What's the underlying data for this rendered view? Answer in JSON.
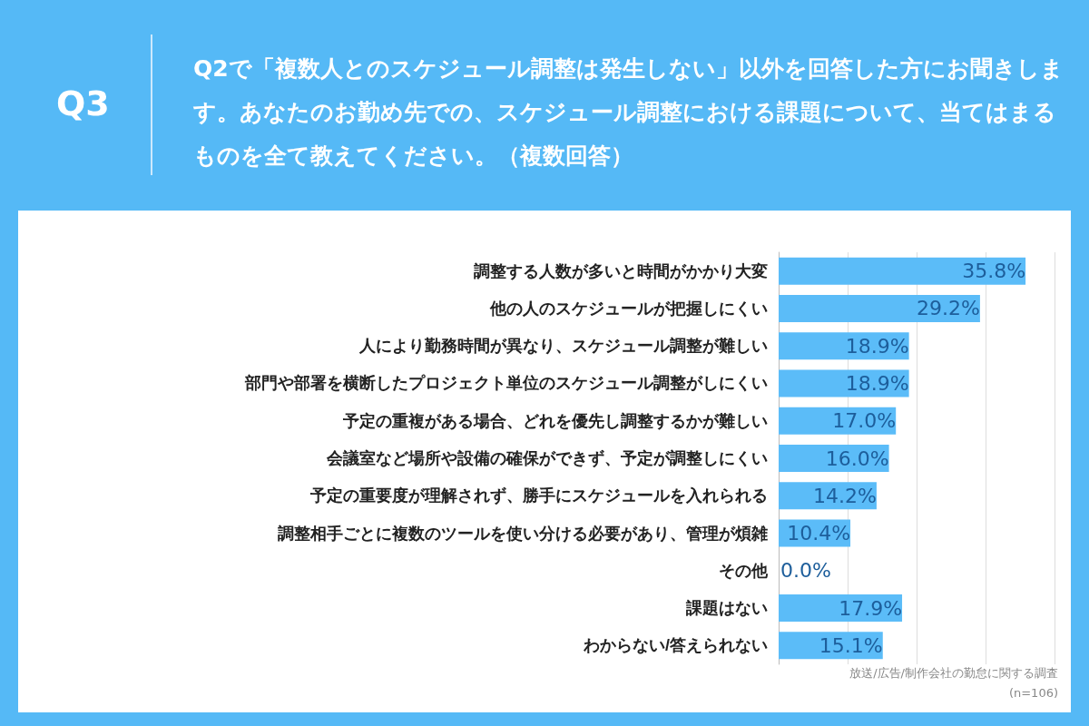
{
  "chart_data": {
    "type": "bar",
    "orientation": "horizontal",
    "title": "Q3",
    "subtitle": "Q2で「複数人とのスケジュール調整は発生しない」以外を回答した方にお聞きします。あなたのお勤め先での、スケジュール調整における課題について、当てはまるものを全て教えてください。（複数回答）",
    "categories": [
      "調整する人数が多いと時間がかかり大変",
      "他の人のスケジュールが把握しにくい",
      "人により勤務時間が異なり、スケジュール調整が難しい",
      "部門や部署を横断したプロジェクト単位のスケジュール調整がしにくい",
      "予定の重複がある場合、どれを優先し調整するかが難しい",
      "会議室など場所や設備の確保ができず、予定が調整しにくい",
      "予定の重要度が理解されず、勝手にスケジュールを入れられる",
      "調整相手ごとに複数のツールを使い分ける必要があり、管理が煩雑",
      "その他",
      "課題はない",
      "わからない/答えられない"
    ],
    "values": [
      35.8,
      29.2,
      18.9,
      18.9,
      17.0,
      16.0,
      14.2,
      10.4,
      0.0,
      17.9,
      15.1
    ],
    "value_labels": [
      "35.8%",
      "29.2%",
      "18.9%",
      "18.9%",
      "17.0%",
      "16.0%",
      "14.2%",
      "10.4%",
      "0.0%",
      "17.9%",
      "15.1%"
    ],
    "color": "#5bbcf8",
    "xlim": [
      0,
      40
    ],
    "xticks": [
      {
        "value": 0,
        "label": null
      },
      {
        "value": 10,
        "label": null
      },
      {
        "value": 20,
        "label": null
      },
      {
        "value": 30,
        "label": null
      },
      {
        "value": 40,
        "label": null
      }
    ],
    "tick_labels": "y",
    "grid": "x",
    "annotations": [
      "放送/広告/制作会社の勤怠に関する調査",
      "(n=106)"
    ]
  }
}
